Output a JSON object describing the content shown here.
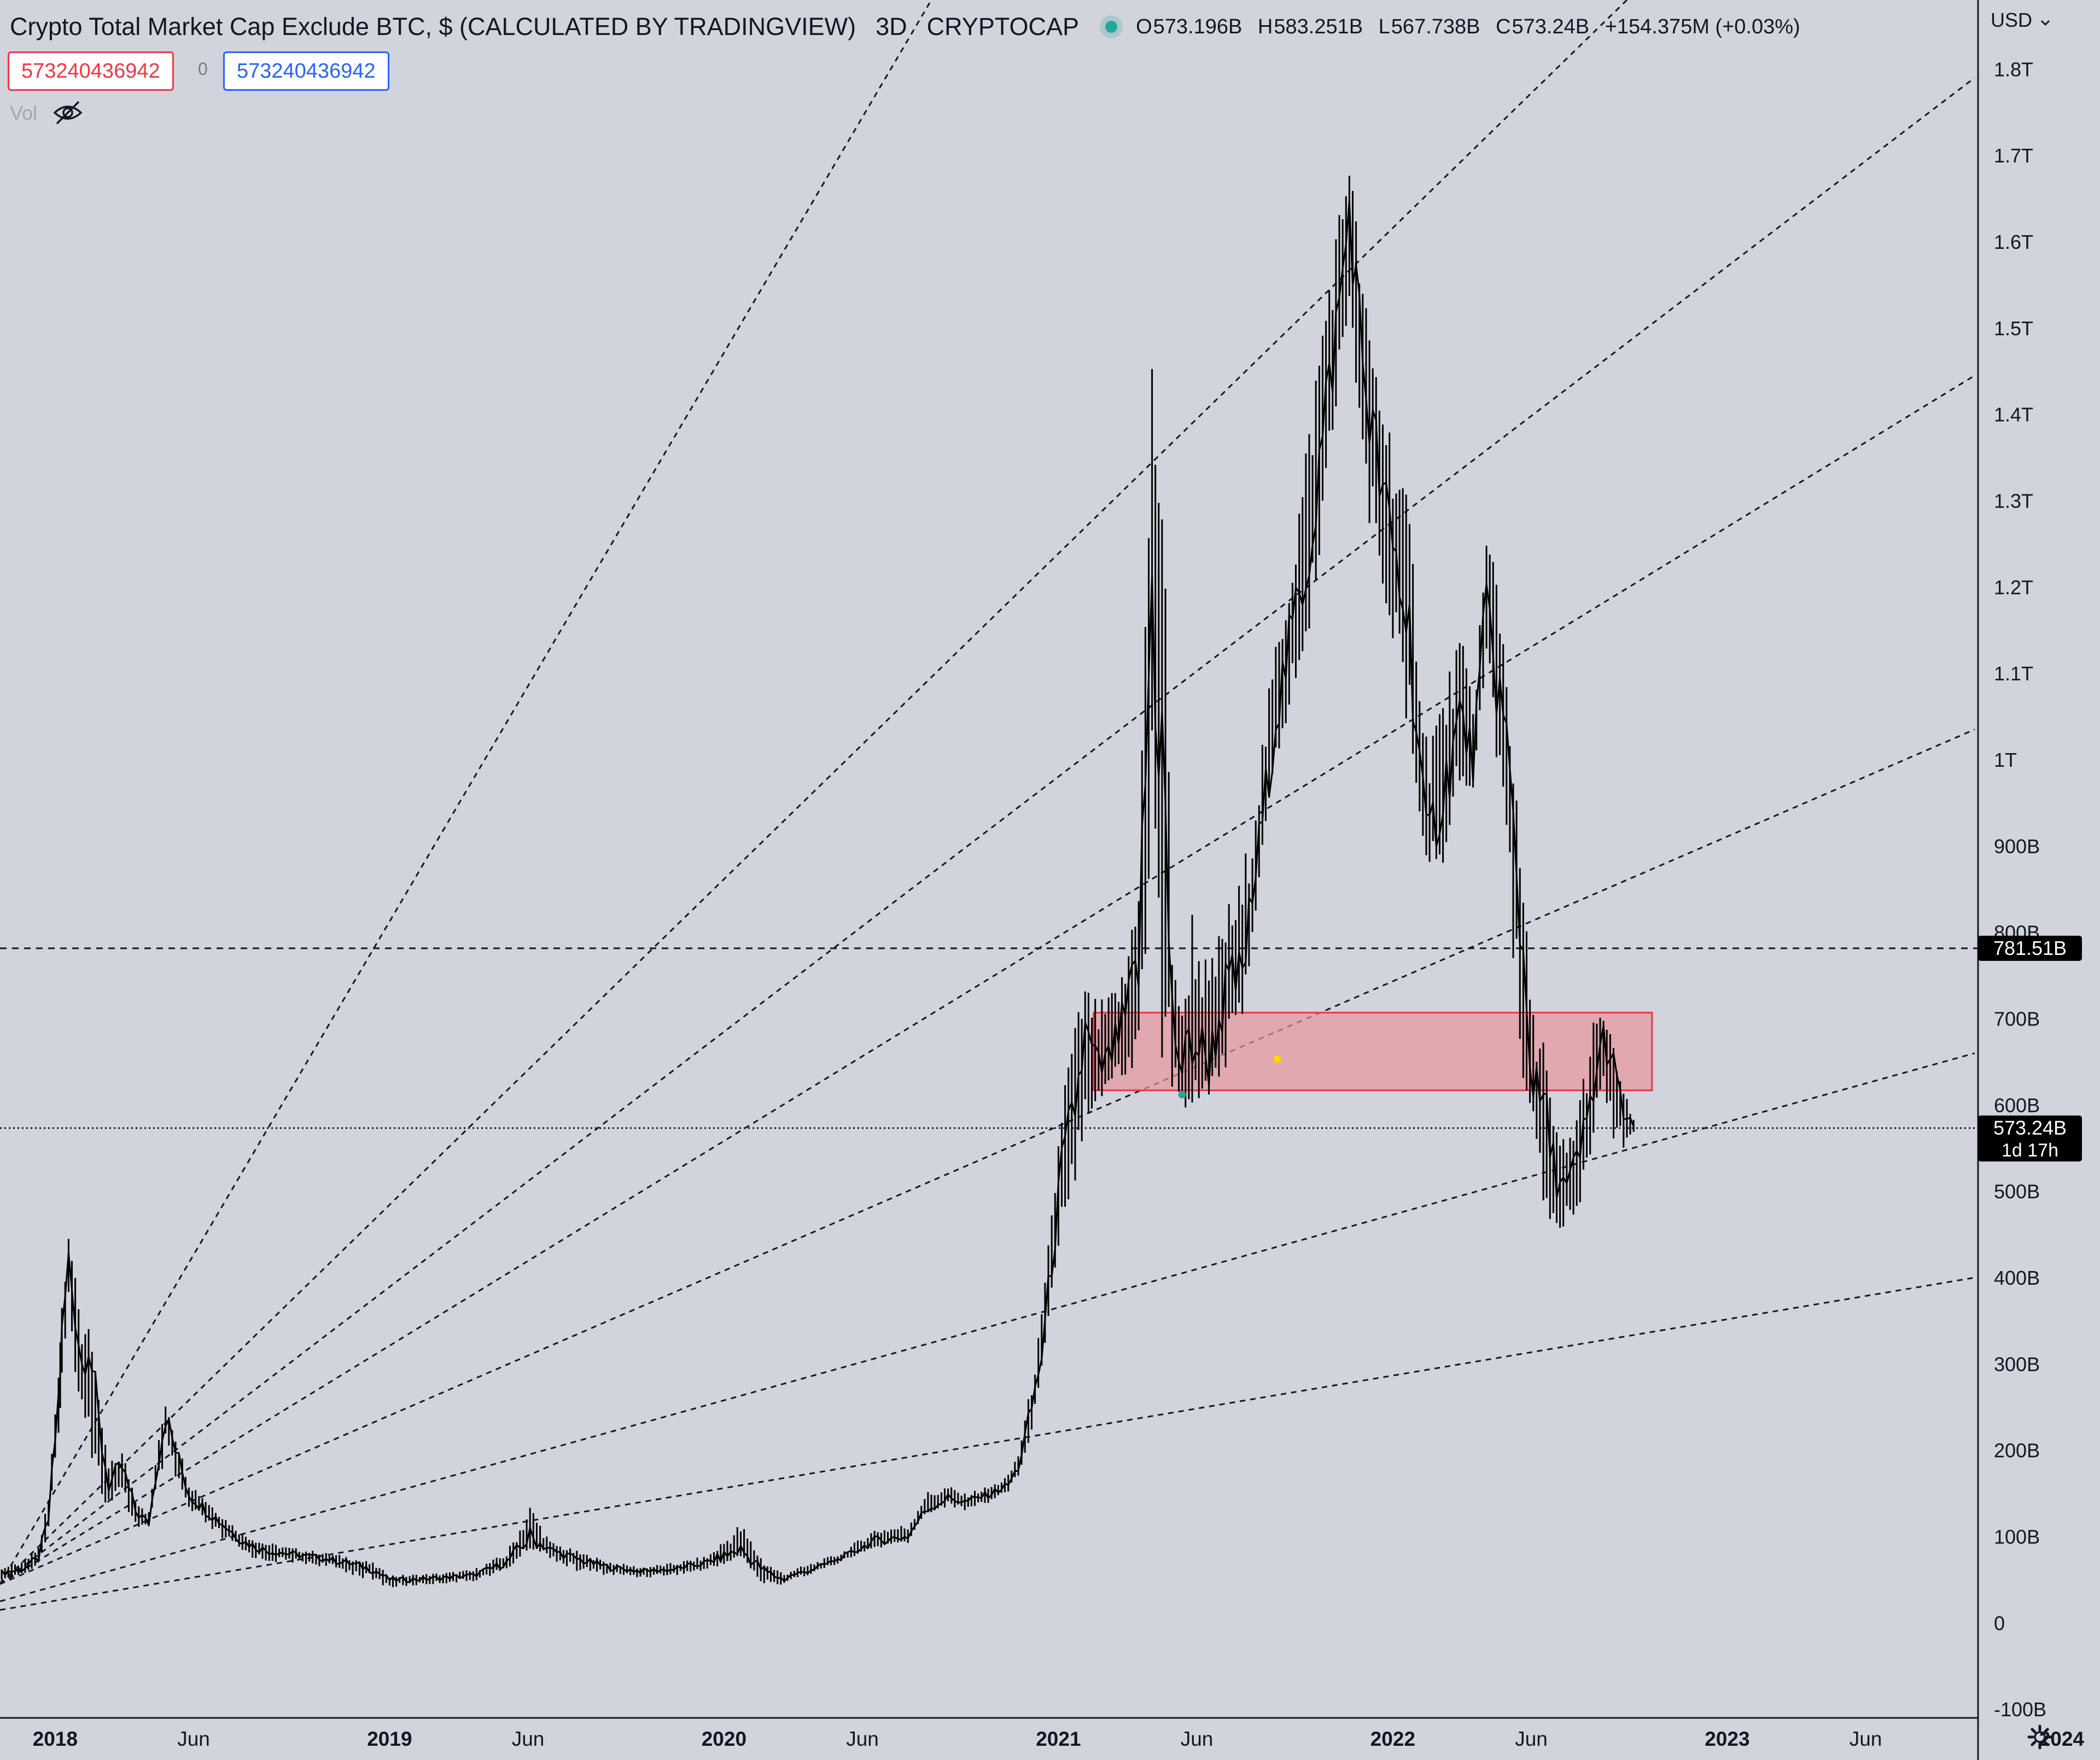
{
  "header": {
    "title": "Crypto Total Market Cap Exclude BTC, $ (CALCULATED BY TRADINGVIEW)",
    "timeframe": "3D",
    "exchange": "CRYPTOCAP",
    "ohlc": {
      "o_label": "O",
      "o": "573.196B",
      "h_label": "H",
      "h": "583.251B",
      "l_label": "L",
      "l": "567.738B",
      "c_label": "C",
      "c": "573.24B",
      "change": "+154.375M (+0.03%)"
    }
  },
  "inputs": {
    "red_value": "573240436942",
    "middle_value": "0",
    "blue_value": "573240436942"
  },
  "volume": {
    "label": "Vol"
  },
  "currency": {
    "label": "USD"
  },
  "icons": {
    "hide": "eye-off-icon",
    "dropdown": "chevron-down-icon",
    "settings": "gear-icon"
  },
  "colors": {
    "background": "#d1d4dc",
    "candles": "#000000",
    "zone_fill": "#e8959c",
    "zone_border": "#f23645",
    "label_bg": "#000000",
    "green_dot": "#26a69a",
    "yellow_dot": "#ffd600"
  },
  "chart_data": {
    "type": "candlestick",
    "title": "Crypto Total Market Cap Exclude BTC, $ (CALCULATED BY TRADINGVIEW)",
    "timeframe": "3D",
    "y_tick_labels": [
      "-100B",
      "0",
      "100B",
      "200B",
      "300B",
      "400B",
      "500B",
      "600B",
      "700B",
      "800B",
      "900B",
      "1T",
      "1.1T",
      "1.2T",
      "1.3T",
      "1.4T",
      "1.5T",
      "1.6T",
      "1.7T",
      "1.8T"
    ],
    "y_tick_values": [
      -100,
      0,
      100,
      200,
      300,
      400,
      500,
      600,
      700,
      800,
      900,
      1000,
      1100,
      1200,
      1300,
      1400,
      1500,
      1600,
      1700,
      1800
    ],
    "ylim": [
      -110,
      1880
    ],
    "y_unit": "billions USD",
    "x_tick_labels": [
      "2018",
      "Jun",
      "2019",
      "Jun",
      "2020",
      "Jun",
      "2021",
      "Jun",
      "2022",
      "Jun",
      "2023",
      "Jun",
      "2024"
    ],
    "x_tick_values": [
      2018.0,
      2018.414,
      2019.0,
      2019.414,
      2020.0,
      2020.414,
      2021.0,
      2021.414,
      2022.0,
      2022.414,
      2023.0,
      2023.414,
      2024.0
    ],
    "xlim": [
      2017.835,
      2023.75
    ],
    "price_series": {
      "x": [
        2017.84,
        2017.9,
        2017.95,
        2017.98,
        2018.01,
        2018.02,
        2018.04,
        2018.06,
        2018.08,
        2018.1,
        2018.13,
        2018.16,
        2018.2,
        2018.24,
        2018.28,
        2018.3,
        2018.33,
        2018.36,
        2018.4,
        2018.44,
        2018.5,
        2018.56,
        2018.62,
        2018.7,
        2018.8,
        2018.87,
        2018.95,
        2019.0,
        2019.05,
        2019.15,
        2019.25,
        2019.35,
        2019.42,
        2019.48,
        2019.55,
        2019.65,
        2019.75,
        2019.85,
        2019.95,
        2020.05,
        2020.12,
        2020.18,
        2020.2,
        2020.25,
        2020.35,
        2020.45,
        2020.55,
        2020.6,
        2020.67,
        2020.72,
        2020.8,
        2020.85,
        2020.88,
        2020.92,
        2020.95,
        2020.98,
        2021.01,
        2021.05,
        2021.08,
        2021.12,
        2021.15,
        2021.2,
        2021.24,
        2021.28,
        2021.31,
        2021.34,
        2021.37,
        2021.4,
        2021.45,
        2021.5,
        2021.55,
        2021.6,
        2021.65,
        2021.7,
        2021.75,
        2021.8,
        2021.85,
        2021.87,
        2021.9,
        2021.93,
        2021.98,
        2022.05,
        2022.1,
        2022.15,
        2022.2,
        2022.24,
        2022.28,
        2022.31,
        2022.34,
        2022.38,
        2022.42,
        2022.45,
        2022.48,
        2022.52,
        2022.56,
        2022.6,
        2022.63,
        2022.66,
        2022.69,
        2022.72
      ],
      "close": [
        58,
        62,
        75,
        120,
        260,
        330,
        420,
        360,
        300,
        330,
        230,
        160,
        180,
        130,
        115,
        170,
        240,
        200,
        150,
        135,
        115,
        95,
        85,
        80,
        75,
        70,
        62,
        50,
        50,
        52,
        55,
        70,
        100,
        85,
        75,
        65,
        60,
        62,
        70,
        85,
        60,
        50,
        55,
        60,
        75,
        95,
        100,
        130,
        145,
        140,
        150,
        160,
        180,
        250,
        310,
        420,
        520,
        600,
        680,
        640,
        650,
        700,
        760,
        1200,
        1000,
        700,
        640,
        680,
        650,
        730,
        750,
        900,
        1050,
        1150,
        1250,
        1400,
        1560,
        1640,
        1500,
        1400,
        1280,
        1150,
        900,
        960,
        1050,
        1000,
        1180,
        1100,
        1020,
        820,
        620,
        600,
        530,
        500,
        540,
        620,
        680,
        640,
        590,
        573
      ],
      "high": [
        66,
        70,
        90,
        150,
        310,
        380,
        470,
        400,
        340,
        350,
        260,
        185,
        200,
        150,
        130,
        190,
        260,
        220,
        165,
        150,
        125,
        105,
        95,
        88,
        82,
        78,
        70,
        56,
        56,
        58,
        62,
        82,
        140,
        95,
        85,
        72,
        65,
        70,
        78,
        118,
        72,
        58,
        62,
        68,
        82,
        110,
        115,
        152,
        160,
        150,
        160,
        172,
        200,
        280,
        360,
        480,
        620,
        700,
        740,
        720,
        730,
        760,
        900,
        1490,
        1420,
        820,
        710,
        840,
        760,
        830,
        870,
        1000,
        1140,
        1250,
        1400,
        1560,
        1660,
        1710,
        1590,
        1500,
        1420,
        1290,
        1050,
        1080,
        1150,
        1080,
        1260,
        1250,
        1120,
        900,
        710,
        690,
        580,
        560,
        620,
        700,
        710,
        670,
        620,
        583
      ],
      "low": [
        50,
        55,
        65,
        100,
        220,
        260,
        350,
        290,
        240,
        210,
        140,
        130,
        140,
        110,
        110,
        140,
        190,
        160,
        125,
        115,
        95,
        80,
        70,
        70,
        65,
        58,
        48,
        40,
        42,
        45,
        48,
        60,
        85,
        75,
        60,
        55,
        52,
        55,
        60,
        75,
        40,
        45,
        50,
        55,
        70,
        85,
        92,
        125,
        135,
        130,
        140,
        152,
        170,
        220,
        290,
        380,
        460,
        510,
        580,
        600,
        620,
        620,
        640,
        880,
        620,
        610,
        590,
        600,
        610,
        640,
        700,
        850,
        980,
        1070,
        1120,
        1300,
        1470,
        1520,
        1350,
        1250,
        1180,
        1000,
        880,
        880,
        960,
        960,
        1100,
        1000,
        920,
        600,
        590,
        480,
        430,
        460,
        480,
        560,
        620,
        560,
        550,
        567
      ]
    },
    "horizontal_lines": [
      {
        "value": 781.51,
        "style": "dashed",
        "axis_label": "781.51B"
      },
      {
        "value": 573.24,
        "style": "dotted",
        "axis_label": "573.24B",
        "countdown": "1d 17h"
      }
    ],
    "zone": {
      "x_start": 2021.105,
      "x_end": 2022.775,
      "y_top": 707,
      "y_bottom": 617
    },
    "markers": [
      {
        "x": 2021.37,
        "y": 612,
        "color": "green"
      },
      {
        "x": 2021.655,
        "y": 653,
        "color": "yellow"
      }
    ],
    "fan_lines": [
      {
        "x1": 2017.835,
        "y1": 45,
        "x2": 2020.62,
        "y2": 1880
      },
      {
        "x1": 2017.835,
        "y1": 45,
        "x2": 2022.7,
        "y2": 1880
      },
      {
        "x1": 2017.835,
        "y1": 45,
        "x2": 2023.74,
        "y2": 1790
      },
      {
        "x1": 2017.835,
        "y1": 45,
        "x2": 2023.74,
        "y2": 1445
      },
      {
        "x1": 2017.835,
        "y1": 45,
        "x2": 2023.74,
        "y2": 1035
      },
      {
        "x1": 2017.835,
        "y1": 25,
        "x2": 2023.74,
        "y2": 660
      },
      {
        "x1": 2017.835,
        "y1": 15,
        "x2": 2023.74,
        "y2": 400
      }
    ]
  }
}
